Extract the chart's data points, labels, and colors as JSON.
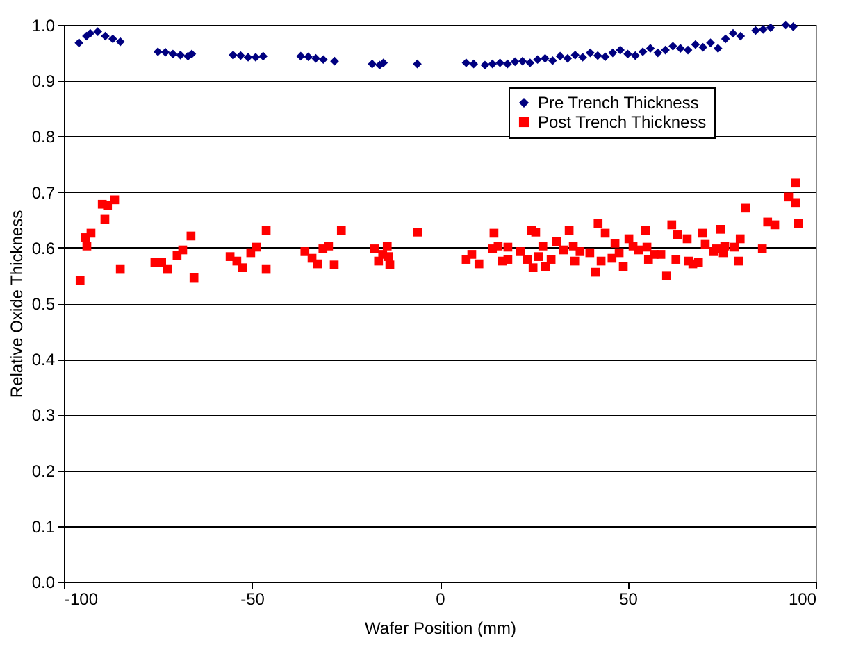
{
  "chart_data": {
    "type": "scatter",
    "xlabel": "Wafer Position (mm)",
    "ylabel": "Relative Oxide Thickness",
    "xlim": [
      -100,
      100
    ],
    "xticks": [
      -100,
      -50,
      0,
      50,
      100
    ],
    "ylim": [
      0,
      1
    ],
    "yticks": [
      {
        "value": 0,
        "label": "0.0"
      },
      0.1,
      0.2,
      0.3,
      0.4,
      0.5,
      0.6,
      0.7,
      0.8,
      0.9,
      {
        "value": 1,
        "label": "1.0"
      }
    ],
    "grid": "y",
    "legend": "top right",
    "series": [
      {
        "name": "Pre Trench Thickness",
        "color": "#000080",
        "marker": "diamond",
        "x": [
          -96,
          -94,
          -93,
          -91,
          -89,
          -87,
          -85,
          -75,
          -73,
          -71,
          -69,
          -67,
          -66,
          -55,
          -53,
          -51,
          -49,
          -47,
          -37,
          -35,
          -33,
          -31,
          -28,
          -18,
          -16,
          -15,
          -6,
          7,
          9,
          12,
          14,
          16,
          18,
          20,
          22,
          24,
          26,
          28,
          30,
          32,
          34,
          36,
          38,
          40,
          42,
          44,
          46,
          48,
          50,
          52,
          54,
          56,
          58,
          60,
          62,
          64,
          66,
          68,
          70,
          72,
          74,
          76,
          78,
          80,
          84,
          86,
          88,
          92,
          94
        ],
        "values": [
          0.968,
          0.98,
          0.985,
          0.988,
          0.98,
          0.975,
          0.97,
          0.952,
          0.951,
          0.948,
          0.946,
          0.944,
          0.948,
          0.946,
          0.945,
          0.942,
          0.942,
          0.944,
          0.944,
          0.943,
          0.94,
          0.938,
          0.935,
          0.93,
          0.928,
          0.932,
          0.93,
          0.932,
          0.93,
          0.928,
          0.93,
          0.932,
          0.93,
          0.934,
          0.935,
          0.932,
          0.938,
          0.94,
          0.936,
          0.944,
          0.94,
          0.946,
          0.942,
          0.95,
          0.945,
          0.943,
          0.95,
          0.955,
          0.948,
          0.945,
          0.952,
          0.958,
          0.95,
          0.955,
          0.962,
          0.958,
          0.955,
          0.965,
          0.96,
          0.968,
          0.958,
          0.975,
          0.985,
          0.98,
          0.99,
          0.992,
          0.995,
          1.0,
          0.997
        ]
      },
      {
        "name": "Post Trench Thickness",
        "color": "#ff0000",
        "marker": "square",
        "x": [
          -95.7,
          -94.3,
          -92.8,
          -93.9,
          -89.8,
          -88.4,
          -86.5,
          -89.1,
          -85,
          -75.8,
          -74,
          -72.5,
          -69.9,
          -68.4,
          -66.2,
          -65.4,
          -55.8,
          -54,
          -52.5,
          -50.3,
          -48.8,
          -46.2,
          -46.2,
          -35.9,
          -34,
          -32.5,
          -31.1,
          -29.6,
          -26.2,
          -28.1,
          -17.4,
          -16.3,
          -14,
          -13.7,
          -13.3,
          -15.2,
          -5.9,
          7,
          8.5,
          10.4,
          14.4,
          14,
          15.5,
          16.6,
          18.1,
          18.1,
          21.4,
          23.3,
          24.4,
          25.5,
          24.8,
          27.4,
          26.2,
          28.1,
          29.6,
          31.1,
          32.9,
          34.4,
          35.5,
          35.9,
          37.3,
          39.9,
          41.4,
          42.1,
          42.9,
          44,
          45.8,
          46.6,
          47.7,
          48.8,
          50.3,
          51.4,
          52.9,
          54.7,
          55.1,
          55.5,
          57,
          58.8,
          60.3,
          61.7,
          63.2,
          62.8,
          65.8,
          66.2,
          67.3,
          68.8,
          69.9,
          70.6,
          72.8,
          73.6,
          74.7,
          75.4,
          75.8,
          78.4,
          79.9,
          79.5,
          81.3,
          85.8,
          87.2,
          89.1,
          92.8,
          94.6,
          94.6,
          95.4
        ],
        "values": [
          0.541,
          0.618,
          0.626,
          0.603,
          0.678,
          0.676,
          0.686,
          0.651,
          0.561,
          0.574,
          0.574,
          0.561,
          0.586,
          0.596,
          0.621,
          0.546,
          0.584,
          0.576,
          0.564,
          0.591,
          0.601,
          0.631,
          0.561,
          0.593,
          0.581,
          0.571,
          0.598,
          0.603,
          0.631,
          0.569,
          0.598,
          0.576,
          0.603,
          0.584,
          0.569,
          0.588,
          0.628,
          0.579,
          0.588,
          0.571,
          0.626,
          0.598,
          0.603,
          0.576,
          0.601,
          0.579,
          0.593,
          0.579,
          0.631,
          0.628,
          0.564,
          0.603,
          0.584,
          0.566,
          0.579,
          0.611,
          0.596,
          0.631,
          0.603,
          0.576,
          0.593,
          0.591,
          0.556,
          0.643,
          0.576,
          0.626,
          0.581,
          0.608,
          0.591,
          0.566,
          0.616,
          0.603,
          0.596,
          0.631,
          0.601,
          0.579,
          0.588,
          0.588,
          0.549,
          0.641,
          0.623,
          0.579,
          0.616,
          0.576,
          0.571,
          0.574,
          0.626,
          0.606,
          0.593,
          0.598,
          0.633,
          0.591,
          0.603,
          0.601,
          0.616,
          0.576,
          0.671,
          0.598,
          0.646,
          0.641,
          0.691,
          0.716,
          0.681,
          0.643
        ]
      }
    ]
  }
}
